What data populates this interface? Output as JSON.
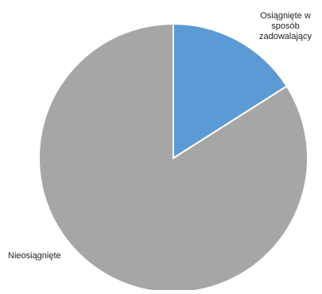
{
  "chart_data": {
    "type": "pie",
    "start_angle_deg": 0,
    "direction": "clockwise",
    "slices": [
      {
        "label_lines": [
          "Osiągnięte w",
          "sposób",
          "zadowalający"
        ],
        "value": 16,
        "color": "#5b9bd5"
      },
      {
        "label_lines": [
          "Nieosiągnięte"
        ],
        "value": 84,
        "color": "#a6a6a6"
      }
    ],
    "slice_border_color": "#ffffff",
    "legend": "none"
  }
}
